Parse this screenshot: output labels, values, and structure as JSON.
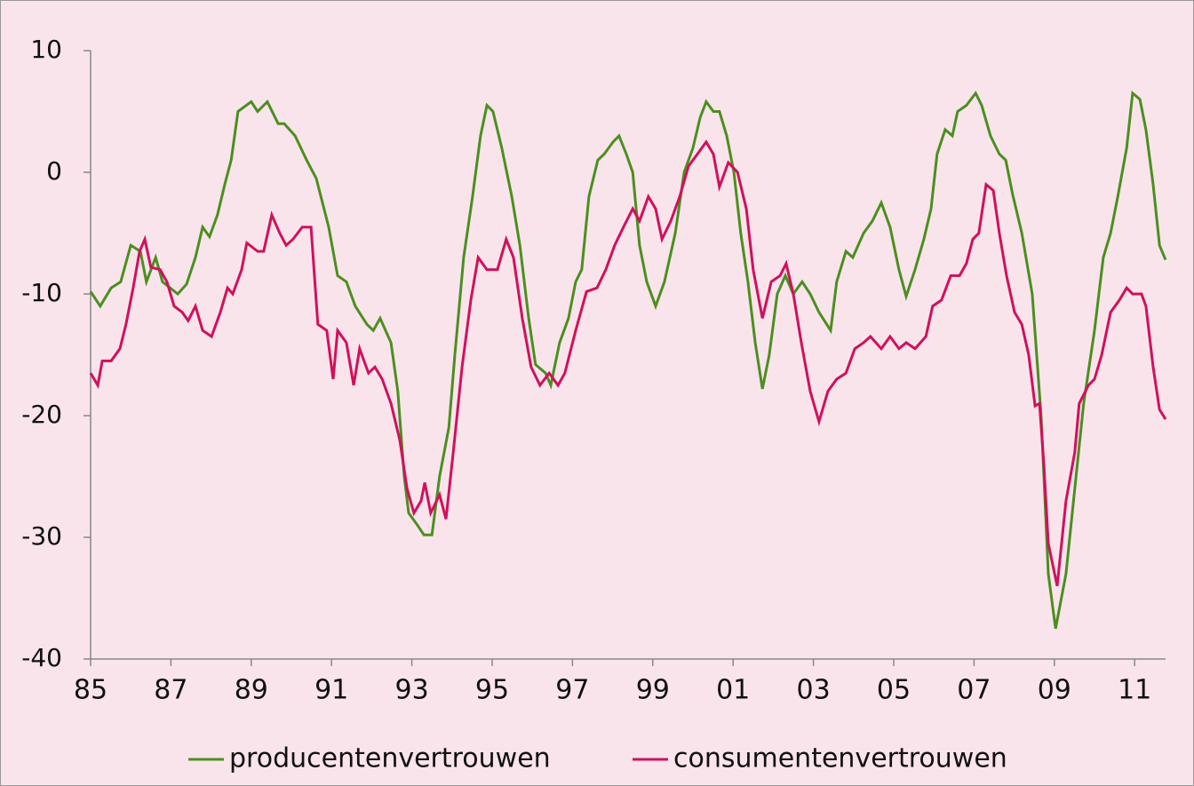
{
  "chart_data": {
    "type": "line",
    "xlim": [
      1985,
      2011.77
    ],
    "ylim": [
      -40,
      10
    ],
    "xticks": [
      {
        "value": 1985,
        "label": "85"
      },
      {
        "value": 1987,
        "label": "87"
      },
      {
        "value": 1989,
        "label": "89"
      },
      {
        "value": 1991,
        "label": "91"
      },
      {
        "value": 1993,
        "label": "93"
      },
      {
        "value": 1995,
        "label": "95"
      },
      {
        "value": 1997,
        "label": "97"
      },
      {
        "value": 1999,
        "label": "99"
      },
      {
        "value": 2001,
        "label": "01"
      },
      {
        "value": 2003,
        "label": "03"
      },
      {
        "value": 2005,
        "label": "05"
      },
      {
        "value": 2007,
        "label": "07"
      },
      {
        "value": 2009,
        "label": "09"
      },
      {
        "value": 2011,
        "label": "11"
      }
    ],
    "yticks": [
      10,
      0,
      -10,
      -20,
      -30,
      -40
    ],
    "grid": false,
    "legend": "bottom",
    "series": [
      {
        "name": "producentenvertrouwen",
        "color": "#4b8f1e",
        "x": [
          1985,
          1985.24,
          1985.51,
          1985.75,
          1986,
          1986.24,
          1986.39,
          1986.62,
          1986.79,
          1987.17,
          1987.39,
          1987.61,
          1987.79,
          1987.96,
          1988.16,
          1988.34,
          1988.5,
          1988.67,
          1989,
          1989.16,
          1989.4,
          1989.67,
          1989.82,
          1990.09,
          1990.38,
          1990.62,
          1990.93,
          1991.15,
          1991.37,
          1991.59,
          1991.88,
          1992.04,
          1992.21,
          1992.48,
          1992.65,
          1992.81,
          1992.92,
          1993.14,
          1993.3,
          1993.5,
          1993.69,
          1993.92,
          1994.07,
          1994.29,
          1994.51,
          1994.71,
          1994.87,
          1995.02,
          1995.24,
          1995.49,
          1995.69,
          1995.91,
          1996.08,
          1996.33,
          1996.46,
          1996.68,
          1996.9,
          1997.08,
          1997.23,
          1997.41,
          1997.63,
          1997.79,
          1998.01,
          1998.16,
          1998.34,
          1998.5,
          1998.67,
          1998.85,
          1999.07,
          1999.29,
          1999.56,
          1999.78,
          2000,
          2000.18,
          2000.33,
          2000.51,
          2000.66,
          2000.84,
          2001.02,
          2001.19,
          2001.37,
          2001.55,
          2001.73,
          2001.9,
          2002.1,
          2002.3,
          2002.5,
          2002.72,
          2002.92,
          2003.14,
          2003.43,
          2003.58,
          2003.81,
          2003.98,
          2004.25,
          2004.47,
          2004.69,
          2004.91,
          2005.13,
          2005.31,
          2005.53,
          2005.75,
          2005.93,
          2006.08,
          2006.28,
          2006.46,
          2006.59,
          2006.81,
          2007.04,
          2007.19,
          2007.41,
          2007.63,
          2007.79,
          2007.96,
          2008.19,
          2008.45,
          2008.67,
          2008.85,
          2009.03,
          2009.29,
          2009.51,
          2009.73,
          2010,
          2010.22,
          2010.4,
          2010.58,
          2010.8,
          2010.95,
          2011.13,
          2011.28,
          2011.46,
          2011.62,
          2011.77
        ],
        "values": [
          -9.8,
          -11,
          -9.5,
          -9,
          -6,
          -6.5,
          -9,
          -7,
          -9,
          -10,
          -9.2,
          -7,
          -4.5,
          -5.3,
          -3.5,
          -1,
          1,
          5,
          5.8,
          5,
          5.8,
          4,
          4,
          3,
          1,
          -0.5,
          -4.5,
          -8.5,
          -9,
          -11,
          -12.5,
          -13,
          -12,
          -14,
          -18,
          -25,
          -28,
          -29,
          -29.8,
          -29.8,
          -25,
          -21,
          -15,
          -7,
          -2,
          3,
          5.5,
          5,
          2,
          -2,
          -6,
          -12,
          -15.8,
          -16.5,
          -17.5,
          -14,
          -12,
          -9,
          -8,
          -2,
          1,
          1.5,
          2.5,
          3,
          1.5,
          0,
          -6,
          -9,
          -11,
          -9,
          -5,
          0,
          2,
          4.5,
          5.8,
          5,
          5,
          3,
          0,
          -5,
          -9,
          -14,
          -17.8,
          -15,
          -10,
          -8.5,
          -10,
          -9,
          -10,
          -11.5,
          -13,
          -9,
          -6.5,
          -7,
          -5,
          -4,
          -2.5,
          -4.5,
          -8,
          -10.2,
          -8,
          -5.5,
          -3,
          1.5,
          3.5,
          3,
          5,
          5.5,
          6.5,
          5.5,
          3,
          1.5,
          1,
          -1.8,
          -5,
          -10,
          -20,
          -33,
          -37.5,
          -33,
          -26,
          -19,
          -13,
          -7,
          -5,
          -2,
          2,
          6.5,
          6,
          3.5,
          -1,
          -6,
          -7.2
        ]
      },
      {
        "name": "consumentenvertrouwen",
        "color": "#d1105b",
        "x": [
          1985,
          1985.18,
          1985.29,
          1985.51,
          1985.73,
          1985.88,
          1986.06,
          1986.22,
          1986.35,
          1986.5,
          1986.73,
          1986.9,
          1987.08,
          1987.28,
          1987.43,
          1987.61,
          1987.79,
          1988.01,
          1988.23,
          1988.41,
          1988.54,
          1988.76,
          1988.89,
          1989.16,
          1989.31,
          1989.51,
          1989.71,
          1989.87,
          1990.04,
          1990.27,
          1990.49,
          1990.66,
          1990.88,
          1991.04,
          1991.15,
          1991.37,
          1991.55,
          1991.7,
          1991.92,
          1992.08,
          1992.26,
          1992.48,
          1992.7,
          1992.88,
          1993.05,
          1993.23,
          1993.32,
          1993.47,
          1993.69,
          1993.85,
          1994.03,
          1994.25,
          1994.47,
          1994.65,
          1994.87,
          1995.13,
          1995.35,
          1995.53,
          1995.75,
          1995.97,
          1996.19,
          1996.42,
          1996.64,
          1996.81,
          1997.08,
          1997.35,
          1997.61,
          1997.83,
          1998.05,
          1998.27,
          1998.5,
          1998.67,
          1998.89,
          1999.07,
          1999.23,
          1999.45,
          1999.67,
          1999.89,
          2000.11,
          2000.33,
          2000.51,
          2000.66,
          2000.88,
          2001.11,
          2001.33,
          2001.5,
          2001.73,
          2001.95,
          2002.17,
          2002.32,
          2002.5,
          2002.7,
          2002.92,
          2003.14,
          2003.36,
          2003.58,
          2003.81,
          2004.03,
          2004.25,
          2004.42,
          2004.69,
          2004.91,
          2005.13,
          2005.31,
          2005.53,
          2005.8,
          2005.97,
          2006.19,
          2006.42,
          2006.64,
          2006.81,
          2006.97,
          2007.12,
          2007.3,
          2007.48,
          2007.63,
          2007.81,
          2008.01,
          2008.19,
          2008.36,
          2008.52,
          2008.63,
          2008.74,
          2008.85,
          2009.07,
          2009.29,
          2009.51,
          2009.62,
          2009.85,
          2010,
          2010.18,
          2010.4,
          2010.62,
          2010.8,
          2010.95,
          2011.17,
          2011.28,
          2011.46,
          2011.62,
          2011.77
        ],
        "values": [
          -16.5,
          -17.5,
          -15.5,
          -15.5,
          -14.5,
          -12.5,
          -9.5,
          -6.5,
          -5.5,
          -7.8,
          -8,
          -9,
          -11,
          -11.5,
          -12.2,
          -11,
          -13,
          -13.5,
          -11.5,
          -9.5,
          -10,
          -8,
          -5.8,
          -6.5,
          -6.5,
          -3.5,
          -5,
          -6,
          -5.5,
          -4.5,
          -4.5,
          -12.5,
          -13,
          -17,
          -13,
          -14,
          -17.5,
          -14.5,
          -16.5,
          -16,
          -17,
          -19,
          -22,
          -26,
          -28,
          -27,
          -25.5,
          -28,
          -26.5,
          -28.5,
          -23,
          -16,
          -10.5,
          -7,
          -8,
          -8,
          -5.5,
          -7,
          -12,
          -16,
          -17.5,
          -16.5,
          -17.5,
          -16.5,
          -13,
          -9.8,
          -9.5,
          -8,
          -6,
          -4.5,
          -3,
          -4,
          -2,
          -3,
          -5.5,
          -4,
          -2,
          0.5,
          1.5,
          2.5,
          1.5,
          -1.2,
          0.8,
          0,
          -3,
          -8,
          -12,
          -9,
          -8.5,
          -7.5,
          -10,
          -14,
          -18,
          -20.5,
          -18,
          -17,
          -16.5,
          -14.5,
          -14,
          -13.5,
          -14.5,
          -13.5,
          -14.5,
          -14,
          -14.5,
          -13.5,
          -11,
          -10.5,
          -8.5,
          -8.5,
          -7.5,
          -5.5,
          -5,
          -1,
          -1.5,
          -5,
          -8.5,
          -11.5,
          -12.5,
          -15,
          -19.2,
          -19,
          -24,
          -30.5,
          -34,
          -27,
          -23,
          -19,
          -17.5,
          -17,
          -15,
          -11.5,
          -10.5,
          -9.5,
          -10,
          -10,
          -11,
          -16,
          -19.5,
          -20.3
        ]
      }
    ]
  }
}
